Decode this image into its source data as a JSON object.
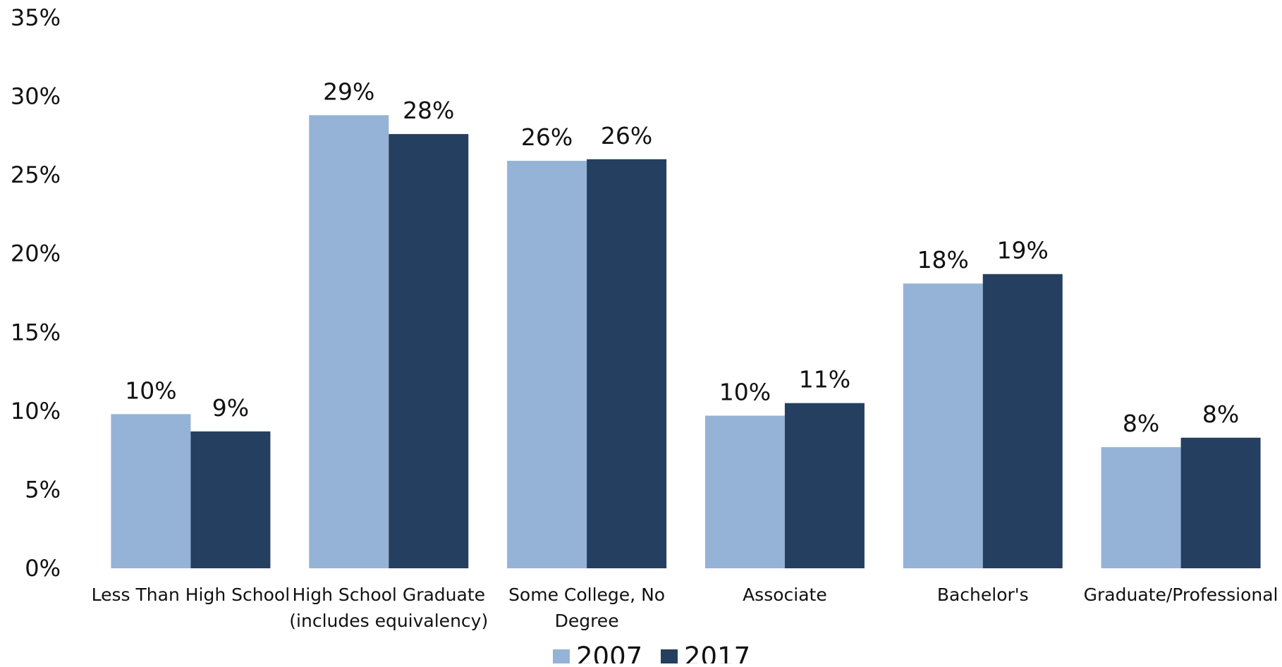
{
  "chart_data": {
    "type": "bar",
    "title": "",
    "xlabel": "",
    "ylabel": "",
    "ylim": [
      0,
      35
    ],
    "y_ticks": [
      0,
      5,
      10,
      15,
      20,
      25,
      30,
      35
    ],
    "y_tick_labels": [
      "0%",
      "5%",
      "10%",
      "15%",
      "20%",
      "25%",
      "30%",
      "35%"
    ],
    "grid": false,
    "legend_position": "bottom",
    "categories": [
      [
        "Less Than High School"
      ],
      [
        "High School Graduate",
        "(includes equivalency)"
      ],
      [
        "Some College, No",
        "Degree"
      ],
      [
        "Associate"
      ],
      [
        "Bachelor's"
      ],
      [
        "Graduate/Professional"
      ]
    ],
    "series": [
      {
        "name": "2007",
        "color": "#95B3D7",
        "values": [
          9.8,
          28.8,
          25.9,
          9.7,
          18.1,
          7.7
        ],
        "labels": [
          "10%",
          "29%",
          "26%",
          "10%",
          "18%",
          "8%"
        ]
      },
      {
        "name": "2017",
        "color": "#243F60",
        "values": [
          8.7,
          27.6,
          26.0,
          10.5,
          18.7,
          8.3
        ],
        "labels": [
          "9%",
          "28%",
          "26%",
          "11%",
          "19%",
          "8%"
        ]
      }
    ]
  }
}
